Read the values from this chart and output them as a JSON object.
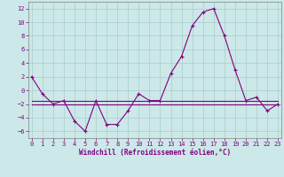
{
  "x": [
    0,
    1,
    2,
    3,
    4,
    5,
    6,
    7,
    8,
    9,
    10,
    11,
    12,
    13,
    14,
    15,
    16,
    17,
    18,
    19,
    20,
    21,
    22,
    23
  ],
  "y_line1": [
    2,
    -0.5,
    -2,
    -1.5,
    -4.5,
    -6,
    -1.5,
    -5,
    -5,
    -3,
    -0.5,
    -1.5,
    -1.5,
    2.5,
    5,
    9.5,
    11.5,
    12,
    8,
    3,
    -1.5,
    -1,
    -3,
    -2
  ],
  "y_line2": [
    -1.5,
    -1.5,
    -1.5,
    -1.5,
    -1.5,
    -1.5,
    -1.5,
    -1.5,
    -1.5,
    -1.5,
    -1.5,
    -1.5,
    -1.5,
    -1.5,
    -1.5,
    -1.5,
    -1.5,
    -1.5,
    -1.5,
    -1.5,
    -1.5,
    -1.5,
    -1.5,
    -1.5
  ],
  "y_line3": [
    -2.0,
    -2.0,
    -2.0,
    -2.0,
    -2.0,
    -2.0,
    -2.0,
    -2.0,
    -2.0,
    -2.0,
    -2.0,
    -2.0,
    -2.0,
    -2.0,
    -2.0,
    -2.0,
    -2.0,
    -2.0,
    -2.0,
    -2.0,
    -2.0,
    -2.0,
    -2.0,
    -2.0
  ],
  "line_color": "#800080",
  "bg_color": "#cce8e8",
  "grid_color": "#aacccc",
  "xlabel": "Windchill (Refroidissement éolien,°C)",
  "ylim": [
    -7,
    13
  ],
  "yticks": [
    -6,
    -4,
    -2,
    0,
    2,
    4,
    6,
    8,
    10,
    12
  ],
  "xticks": [
    0,
    1,
    2,
    3,
    4,
    5,
    6,
    7,
    8,
    9,
    10,
    11,
    12,
    13,
    14,
    15,
    16,
    17,
    18,
    19,
    20,
    21,
    22,
    23
  ],
  "xlim": [
    -0.3,
    23.3
  ]
}
